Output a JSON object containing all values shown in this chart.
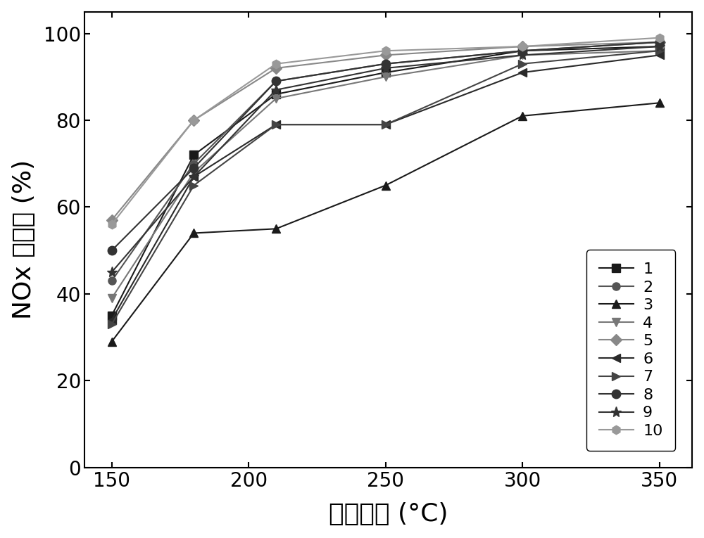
{
  "x": [
    150,
    180,
    210,
    250,
    300,
    350
  ],
  "series": [
    {
      "label": "1",
      "marker": "s",
      "color": "#1a1a1a",
      "markersize": 8,
      "values": [
        35,
        72,
        86,
        91,
        96,
        97
      ]
    },
    {
      "label": "2",
      "marker": "o",
      "color": "#555555",
      "markersize": 8,
      "values": [
        43,
        70,
        89,
        93,
        96,
        98
      ]
    },
    {
      "label": "3",
      "marker": "^",
      "color": "#1a1a1a",
      "markersize": 8,
      "values": [
        29,
        54,
        55,
        65,
        81,
        84
      ]
    },
    {
      "label": "4",
      "marker": "v",
      "color": "#777777",
      "markersize": 8,
      "values": [
        39,
        68,
        85,
        90,
        95,
        96
      ]
    },
    {
      "label": "5",
      "marker": "D",
      "color": "#888888",
      "markersize": 8,
      "values": [
        57,
        80,
        92,
        95,
        97,
        98
      ]
    },
    {
      "label": "6",
      "marker": "<",
      "color": "#2a2a2a",
      "markersize": 8,
      "values": [
        34,
        67,
        79,
        79,
        91,
        95
      ]
    },
    {
      "label": "7",
      "marker": ">",
      "color": "#444444",
      "markersize": 8,
      "values": [
        33,
        65,
        79,
        79,
        93,
        96
      ]
    },
    {
      "label": "8",
      "marker": "o",
      "color": "#333333",
      "markersize": 9,
      "values": [
        50,
        69,
        89,
        93,
        96,
        98
      ]
    },
    {
      "label": "9",
      "marker": "*",
      "color": "#333333",
      "markersize": 11,
      "values": [
        45,
        67,
        87,
        92,
        95,
        97
      ]
    },
    {
      "label": "10",
      "marker": "h",
      "color": "#999999",
      "markersize": 9,
      "values": [
        56,
        80,
        93,
        96,
        97,
        99
      ]
    }
  ],
  "xlabel": "反应温度 (°C)",
  "ylabel": "NOx 转化率 (%)",
  "xlim": [
    140,
    362
  ],
  "ylim": [
    0,
    105
  ],
  "xticks": [
    150,
    200,
    250,
    300,
    350
  ],
  "yticks": [
    0,
    20,
    40,
    60,
    80,
    100
  ],
  "background_color": "#ffffff"
}
